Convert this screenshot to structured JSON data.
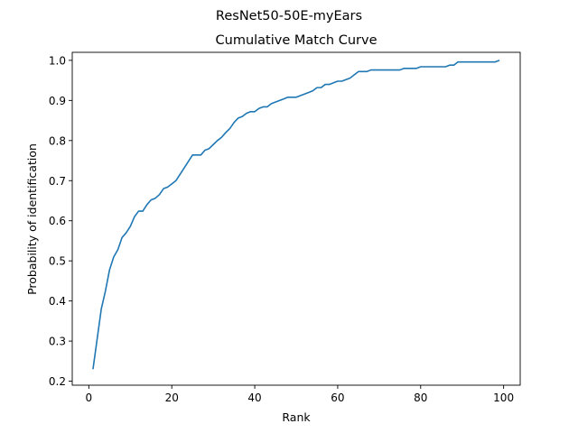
{
  "chart_data": {
    "type": "line",
    "suptitle": "ResNet50-50E-myEars",
    "title": "Cumulative Match Curve",
    "xlabel": "Rank",
    "ylabel": "Probability of identification",
    "xlim": [
      -4,
      104
    ],
    "ylim": [
      0.19,
      1.02
    ],
    "xticks": [
      0,
      20,
      40,
      60,
      80,
      100
    ],
    "yticks": [
      0.2,
      0.3,
      0.4,
      0.5,
      0.6,
      0.7,
      0.8,
      0.9,
      1.0
    ],
    "grid": false,
    "line_color": "#1f77b4",
    "series": [
      {
        "x": [
          1,
          2,
          3,
          4,
          5,
          6,
          7,
          8,
          9,
          10,
          11,
          12,
          13,
          14,
          15,
          16,
          17,
          18,
          19,
          20,
          21,
          22,
          23,
          24,
          25,
          26,
          27,
          28,
          29,
          30,
          31,
          32,
          33,
          34,
          35,
          36,
          37,
          38,
          39,
          40,
          41,
          42,
          43,
          44,
          45,
          46,
          47,
          48,
          49,
          50,
          51,
          52,
          53,
          54,
          55,
          56,
          57,
          58,
          59,
          60,
          61,
          62,
          63,
          64,
          65,
          66,
          67,
          68,
          69,
          70,
          71,
          72,
          73,
          74,
          75,
          76,
          77,
          78,
          79,
          80,
          81,
          82,
          83,
          84,
          85,
          86,
          87,
          88,
          89,
          90,
          91,
          92,
          93,
          94,
          95,
          96,
          97,
          98,
          99
        ],
        "y": [
          0.23,
          0.305,
          0.38,
          0.425,
          0.478,
          0.51,
          0.528,
          0.558,
          0.57,
          0.586,
          0.61,
          0.624,
          0.624,
          0.64,
          0.652,
          0.656,
          0.665,
          0.68,
          0.684,
          0.692,
          0.7,
          0.716,
          0.732,
          0.748,
          0.764,
          0.764,
          0.764,
          0.776,
          0.78,
          0.79,
          0.8,
          0.808,
          0.82,
          0.83,
          0.845,
          0.856,
          0.86,
          0.868,
          0.872,
          0.872,
          0.88,
          0.884,
          0.884,
          0.892,
          0.896,
          0.9,
          0.904,
          0.908,
          0.908,
          0.908,
          0.912,
          0.916,
          0.92,
          0.924,
          0.932,
          0.932,
          0.94,
          0.94,
          0.944,
          0.948,
          0.948,
          0.952,
          0.956,
          0.964,
          0.972,
          0.972,
          0.972,
          0.976,
          0.976,
          0.976,
          0.976,
          0.976,
          0.976,
          0.976,
          0.976,
          0.98,
          0.98,
          0.98,
          0.98,
          0.984,
          0.984,
          0.984,
          0.984,
          0.984,
          0.984,
          0.984,
          0.988,
          0.988,
          0.996,
          0.996,
          0.996,
          0.996,
          0.996,
          0.996,
          0.996,
          0.996,
          0.996,
          0.996,
          1.0
        ]
      }
    ]
  }
}
